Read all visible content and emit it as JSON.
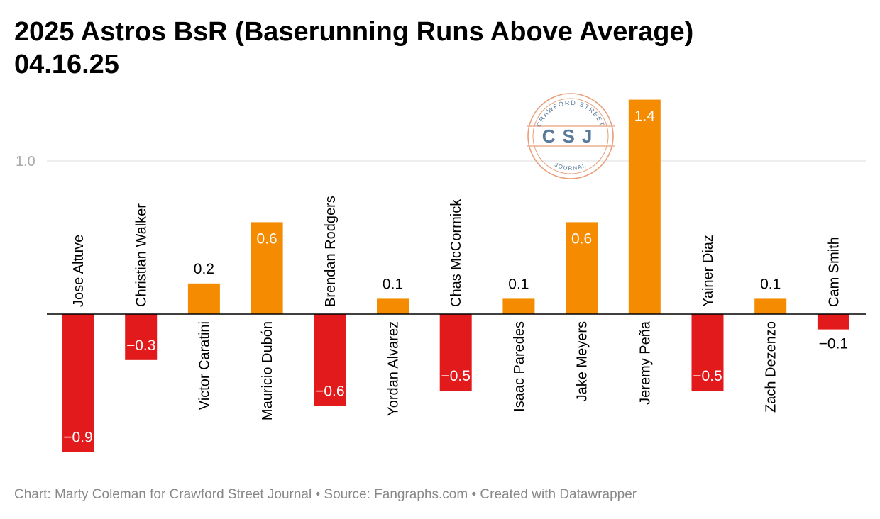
{
  "title_line1": "2025 Astros BsR (Baserunning Runs Above Average)",
  "title_line2": "04.16.25",
  "footer": "Chart: Marty Coleman for Crawford Street Journal • Source: Fangraphs.com • Created with Datawrapper",
  "logo": {
    "top_text": "CRAWFORD STREET",
    "center_text": "CSJ",
    "bottom_text": "JOURNAL",
    "color": "#e8a07a",
    "text_color": "#5a7a9c"
  },
  "colors": {
    "positive": "#f58b00",
    "negative": "#e31a1c",
    "grid": "#dddddd",
    "axis": "#000000"
  },
  "chart_data": {
    "type": "bar",
    "title": "2025 Astros BsR (Baserunning Runs Above Average) 04.16.25",
    "categories": [
      "Jose Altuve",
      "Christian Walker",
      "Victor Caratini",
      "Mauricio Dubón",
      "Brendan Rodgers",
      "Yordan Alvarez",
      "Chas McCormick",
      "Isaac Paredes",
      "Jake Meyers",
      "Jeremy Peña",
      "Yainer Diaz",
      "Zach Dezenzo",
      "Cam Smith"
    ],
    "values": [
      -0.9,
      -0.3,
      0.2,
      0.6,
      -0.6,
      0.1,
      -0.5,
      0.1,
      0.6,
      1.4,
      -0.5,
      0.1,
      -0.1
    ],
    "value_labels": [
      "−0.9",
      "−0.3",
      "0.2",
      "0.6",
      "−0.6",
      "0.1",
      "−0.5",
      "0.1",
      "0.6",
      "1.4",
      "−0.5",
      "0.1",
      "−0.1"
    ],
    "yticks": [
      1.0
    ],
    "ytick_labels": [
      "1.0"
    ],
    "ylim": [
      -0.9,
      1.4
    ],
    "grid": true,
    "legend": false
  }
}
